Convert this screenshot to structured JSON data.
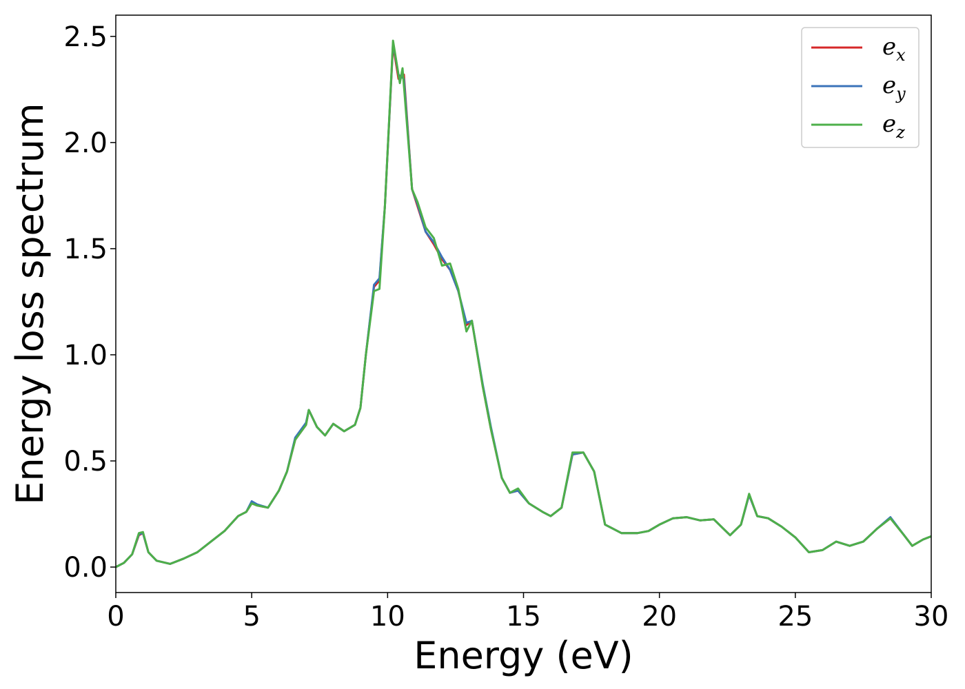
{
  "chart_data": {
    "type": "line",
    "title": "",
    "xlabel": "Energy (eV)",
    "ylabel": "Energy loss spectrum",
    "xlim": [
      0,
      30
    ],
    "ylim": [
      -0.12,
      2.6
    ],
    "x_ticks": [
      0,
      5,
      10,
      15,
      20,
      25,
      30
    ],
    "x_tick_labels": [
      "0",
      "5",
      "10",
      "15",
      "20",
      "25",
      "30"
    ],
    "y_ticks": [
      0.0,
      0.5,
      1.0,
      1.5,
      2.0,
      2.5
    ],
    "y_tick_labels": [
      "0.0",
      "0.5",
      "1.0",
      "1.5",
      "2.0",
      "2.5"
    ],
    "grid": false,
    "legend_position": "top-right",
    "series": [
      {
        "name": "e_x",
        "legend_base": "e",
        "legend_sub": "x",
        "color": "#d62728",
        "points": [
          [
            0,
            0.0
          ],
          [
            0.3,
            0.02
          ],
          [
            0.6,
            0.06
          ],
          [
            0.85,
            0.15
          ],
          [
            1.0,
            0.16
          ],
          [
            1.2,
            0.07
          ],
          [
            1.5,
            0.03
          ],
          [
            2.0,
            0.015
          ],
          [
            2.5,
            0.04
          ],
          [
            3.0,
            0.07
          ],
          [
            3.5,
            0.12
          ],
          [
            4.0,
            0.17
          ],
          [
            4.5,
            0.24
          ],
          [
            4.8,
            0.26
          ],
          [
            5.0,
            0.3
          ],
          [
            5.2,
            0.29
          ],
          [
            5.6,
            0.28
          ],
          [
            6.0,
            0.36
          ],
          [
            6.3,
            0.45
          ],
          [
            6.6,
            0.6
          ],
          [
            7.0,
            0.67
          ],
          [
            7.1,
            0.74
          ],
          [
            7.4,
            0.66
          ],
          [
            7.7,
            0.62
          ],
          [
            8.0,
            0.675
          ],
          [
            8.4,
            0.64
          ],
          [
            8.8,
            0.67
          ],
          [
            9.0,
            0.75
          ],
          [
            9.2,
            1.0
          ],
          [
            9.5,
            1.32
          ],
          [
            9.7,
            1.35
          ],
          [
            9.9,
            1.7
          ],
          [
            10.2,
            2.46
          ],
          [
            10.4,
            2.3
          ],
          [
            10.6,
            2.32
          ],
          [
            10.9,
            1.78
          ],
          [
            11.1,
            1.7
          ],
          [
            11.4,
            1.58
          ],
          [
            11.7,
            1.52
          ],
          [
            12.0,
            1.45
          ],
          [
            12.3,
            1.4
          ],
          [
            12.6,
            1.3
          ],
          [
            12.9,
            1.14
          ],
          [
            13.1,
            1.16
          ],
          [
            13.5,
            0.85
          ],
          [
            13.8,
            0.65
          ],
          [
            14.2,
            0.42
          ],
          [
            14.5,
            0.35
          ],
          [
            14.8,
            0.36
          ],
          [
            15.2,
            0.3
          ],
          [
            15.7,
            0.26
          ],
          [
            16.0,
            0.24
          ],
          [
            16.4,
            0.28
          ],
          [
            16.8,
            0.53
          ],
          [
            17.2,
            0.54
          ],
          [
            17.6,
            0.45
          ],
          [
            18.0,
            0.2
          ],
          [
            18.6,
            0.16
          ],
          [
            19.2,
            0.16
          ],
          [
            19.6,
            0.17
          ],
          [
            20.0,
            0.2
          ],
          [
            20.5,
            0.23
          ],
          [
            21.0,
            0.235
          ],
          [
            21.5,
            0.22
          ],
          [
            22.0,
            0.225
          ],
          [
            22.6,
            0.15
          ],
          [
            23.0,
            0.2
          ],
          [
            23.3,
            0.34
          ],
          [
            23.6,
            0.24
          ],
          [
            24.0,
            0.23
          ],
          [
            24.5,
            0.19
          ],
          [
            25.0,
            0.14
          ],
          [
            25.5,
            0.07
          ],
          [
            26.0,
            0.08
          ],
          [
            26.5,
            0.12
          ],
          [
            27.0,
            0.1
          ],
          [
            27.5,
            0.12
          ],
          [
            28.0,
            0.18
          ],
          [
            28.5,
            0.23
          ],
          [
            29.0,
            0.15
          ],
          [
            29.3,
            0.1
          ],
          [
            29.7,
            0.13
          ],
          [
            30.0,
            0.145
          ]
        ]
      },
      {
        "name": "e_y",
        "legend_base": "e",
        "legend_sub": "y",
        "color": "#3b73b9",
        "points": [
          [
            0,
            0.0
          ],
          [
            0.3,
            0.02
          ],
          [
            0.6,
            0.06
          ],
          [
            0.85,
            0.155
          ],
          [
            1.0,
            0.16
          ],
          [
            1.2,
            0.07
          ],
          [
            1.5,
            0.03
          ],
          [
            2.0,
            0.015
          ],
          [
            2.5,
            0.04
          ],
          [
            3.0,
            0.07
          ],
          [
            3.5,
            0.12
          ],
          [
            4.0,
            0.17
          ],
          [
            4.5,
            0.24
          ],
          [
            4.8,
            0.26
          ],
          [
            5.0,
            0.31
          ],
          [
            5.2,
            0.295
          ],
          [
            5.6,
            0.28
          ],
          [
            6.0,
            0.36
          ],
          [
            6.3,
            0.45
          ],
          [
            6.6,
            0.61
          ],
          [
            7.0,
            0.68
          ],
          [
            7.1,
            0.74
          ],
          [
            7.4,
            0.66
          ],
          [
            7.7,
            0.62
          ],
          [
            8.0,
            0.675
          ],
          [
            8.4,
            0.64
          ],
          [
            8.8,
            0.67
          ],
          [
            9.0,
            0.75
          ],
          [
            9.2,
            1.0
          ],
          [
            9.5,
            1.33
          ],
          [
            9.7,
            1.36
          ],
          [
            9.9,
            1.7
          ],
          [
            10.2,
            2.47
          ],
          [
            10.4,
            2.32
          ],
          [
            10.6,
            2.3
          ],
          [
            10.9,
            1.78
          ],
          [
            11.1,
            1.71
          ],
          [
            11.4,
            1.58
          ],
          [
            11.7,
            1.53
          ],
          [
            12.0,
            1.46
          ],
          [
            12.3,
            1.4
          ],
          [
            12.6,
            1.3
          ],
          [
            12.9,
            1.15
          ],
          [
            13.1,
            1.16
          ],
          [
            13.5,
            0.86
          ],
          [
            13.8,
            0.66
          ],
          [
            14.2,
            0.42
          ],
          [
            14.5,
            0.35
          ],
          [
            14.8,
            0.36
          ],
          [
            15.2,
            0.3
          ],
          [
            15.7,
            0.26
          ],
          [
            16.0,
            0.24
          ],
          [
            16.4,
            0.28
          ],
          [
            16.8,
            0.53
          ],
          [
            17.2,
            0.54
          ],
          [
            17.6,
            0.45
          ],
          [
            18.0,
            0.2
          ],
          [
            18.6,
            0.16
          ],
          [
            19.2,
            0.16
          ],
          [
            19.6,
            0.17
          ],
          [
            20.0,
            0.2
          ],
          [
            20.5,
            0.23
          ],
          [
            21.0,
            0.235
          ],
          [
            21.5,
            0.22
          ],
          [
            22.0,
            0.225
          ],
          [
            22.6,
            0.15
          ],
          [
            23.0,
            0.2
          ],
          [
            23.3,
            0.34
          ],
          [
            23.6,
            0.24
          ],
          [
            24.0,
            0.23
          ],
          [
            24.5,
            0.19
          ],
          [
            25.0,
            0.14
          ],
          [
            25.5,
            0.07
          ],
          [
            26.0,
            0.08
          ],
          [
            26.5,
            0.12
          ],
          [
            27.0,
            0.1
          ],
          [
            27.5,
            0.12
          ],
          [
            28.0,
            0.18
          ],
          [
            28.5,
            0.235
          ],
          [
            29.0,
            0.15
          ],
          [
            29.3,
            0.1
          ],
          [
            29.7,
            0.13
          ],
          [
            30.0,
            0.145
          ]
        ]
      },
      {
        "name": "e_z",
        "legend_base": "e",
        "legend_sub": "z",
        "color": "#4daf4a",
        "points": [
          [
            0,
            0.0
          ],
          [
            0.3,
            0.02
          ],
          [
            0.6,
            0.06
          ],
          [
            0.85,
            0.16
          ],
          [
            1.0,
            0.165
          ],
          [
            1.2,
            0.07
          ],
          [
            1.5,
            0.03
          ],
          [
            2.0,
            0.015
          ],
          [
            2.5,
            0.04
          ],
          [
            3.0,
            0.07
          ],
          [
            3.5,
            0.12
          ],
          [
            4.0,
            0.17
          ],
          [
            4.5,
            0.24
          ],
          [
            4.8,
            0.26
          ],
          [
            5.0,
            0.3
          ],
          [
            5.2,
            0.29
          ],
          [
            5.6,
            0.28
          ],
          [
            6.0,
            0.36
          ],
          [
            6.3,
            0.45
          ],
          [
            6.6,
            0.6
          ],
          [
            7.0,
            0.67
          ],
          [
            7.1,
            0.74
          ],
          [
            7.4,
            0.66
          ],
          [
            7.7,
            0.62
          ],
          [
            8.0,
            0.675
          ],
          [
            8.4,
            0.64
          ],
          [
            8.8,
            0.67
          ],
          [
            9.0,
            0.75
          ],
          [
            9.2,
            1.0
          ],
          [
            9.5,
            1.3
          ],
          [
            9.7,
            1.31
          ],
          [
            9.9,
            1.7
          ],
          [
            10.2,
            2.48
          ],
          [
            10.45,
            2.28
          ],
          [
            10.55,
            2.35
          ],
          [
            10.9,
            1.78
          ],
          [
            11.1,
            1.72
          ],
          [
            11.4,
            1.6
          ],
          [
            11.7,
            1.55
          ],
          [
            12.0,
            1.42
          ],
          [
            12.3,
            1.43
          ],
          [
            12.6,
            1.31
          ],
          [
            12.9,
            1.11
          ],
          [
            13.1,
            1.16
          ],
          [
            13.5,
            0.85
          ],
          [
            13.8,
            0.65
          ],
          [
            14.2,
            0.42
          ],
          [
            14.5,
            0.35
          ],
          [
            14.8,
            0.37
          ],
          [
            15.2,
            0.3
          ],
          [
            15.7,
            0.26
          ],
          [
            16.0,
            0.24
          ],
          [
            16.4,
            0.28
          ],
          [
            16.8,
            0.54
          ],
          [
            17.2,
            0.54
          ],
          [
            17.6,
            0.45
          ],
          [
            18.0,
            0.2
          ],
          [
            18.6,
            0.16
          ],
          [
            19.2,
            0.16
          ],
          [
            19.6,
            0.17
          ],
          [
            20.0,
            0.2
          ],
          [
            20.5,
            0.23
          ],
          [
            21.0,
            0.235
          ],
          [
            21.5,
            0.22
          ],
          [
            22.0,
            0.225
          ],
          [
            22.6,
            0.15
          ],
          [
            23.0,
            0.2
          ],
          [
            23.3,
            0.345
          ],
          [
            23.6,
            0.24
          ],
          [
            24.0,
            0.23
          ],
          [
            24.5,
            0.19
          ],
          [
            25.0,
            0.14
          ],
          [
            25.5,
            0.07
          ],
          [
            26.0,
            0.08
          ],
          [
            26.5,
            0.12
          ],
          [
            27.0,
            0.1
          ],
          [
            27.5,
            0.12
          ],
          [
            28.0,
            0.18
          ],
          [
            28.5,
            0.23
          ],
          [
            29.0,
            0.15
          ],
          [
            29.3,
            0.1
          ],
          [
            29.7,
            0.13
          ],
          [
            30.0,
            0.145
          ]
        ]
      }
    ]
  }
}
